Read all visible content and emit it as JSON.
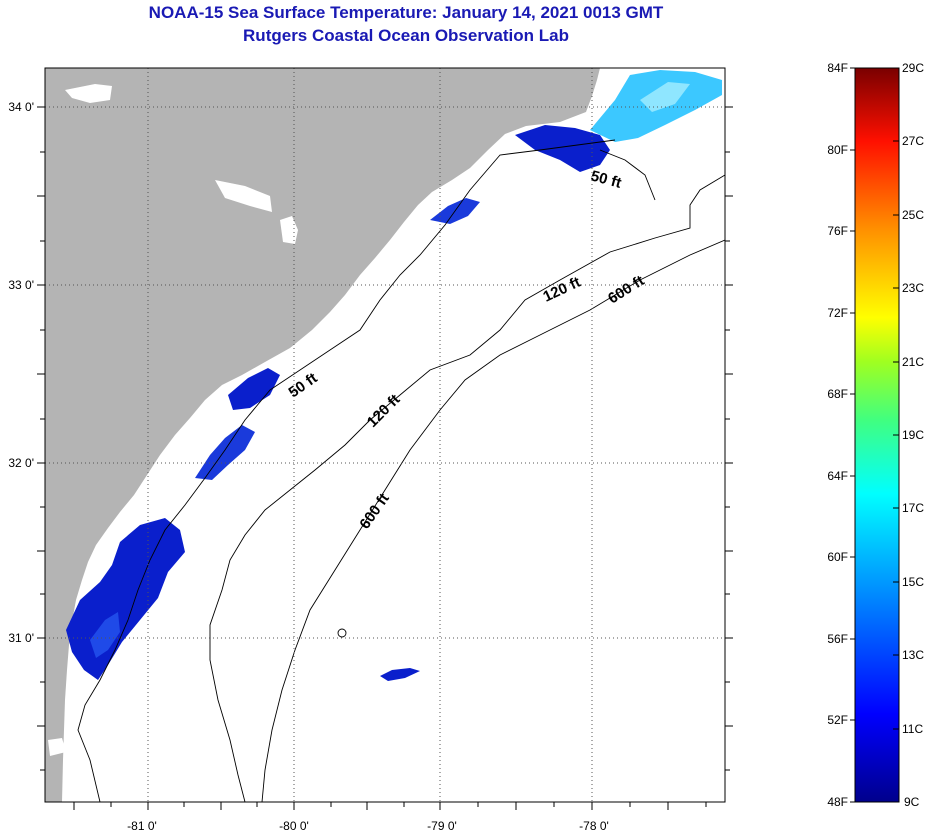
{
  "header": {
    "title_line1": "NOAA-15 Sea Surface Temperature:  January 14, 2021 0013 GMT",
    "title_line2": "Rutgers Coastal Ocean Observation Lab"
  },
  "map": {
    "longitude_ticks": [
      "-81 0'",
      "-80 0'",
      "-79 0'",
      "-78 0'"
    ],
    "latitude_ticks": [
      "34 0'",
      "33 0'",
      "32 0'",
      "31 0'"
    ],
    "contour_labels": [
      "50 ft",
      "50 ft",
      "120 ft",
      "120 ft",
      "600 ft",
      "600 ft"
    ],
    "colors": {
      "land": "#b4b4b4",
      "cold_water": "#0a1fcc",
      "warm_water": "#3cc8ff"
    }
  },
  "colorbar": {
    "fahrenheit_labels": [
      "84F",
      "80F",
      "76F",
      "72F",
      "68F",
      "64F",
      "60F",
      "56F",
      "52F",
      "48F"
    ],
    "celsius_labels": [
      "29C",
      "27C",
      "25C",
      "23C",
      "21C",
      "19C",
      "17C",
      "15C",
      "13C",
      "11C",
      "9C"
    ]
  }
}
